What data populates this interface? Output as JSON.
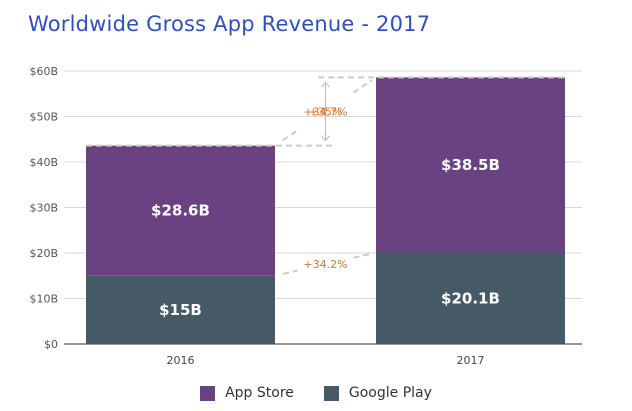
{
  "chart_data": {
    "type": "bar",
    "stacked": true,
    "title": "Worldwide Gross App Revenue - 2017",
    "categories": [
      "2016",
      "2017"
    ],
    "series": [
      {
        "name": "Google Play",
        "values": [
          15,
          20.1
        ],
        "labels": [
          "$15B",
          "$20.1B"
        ],
        "color": "#465a66"
      },
      {
        "name": "App Store",
        "values": [
          28.6,
          38.5
        ],
        "labels": [
          "$28.6B",
          "$38.5B"
        ],
        "color": "#6a4181"
      }
    ],
    "ylim": [
      0,
      60
    ],
    "yticks": [
      0,
      10,
      20,
      30,
      40,
      50,
      60
    ],
    "ytick_labels": [
      "$0",
      "$10B",
      "$20B",
      "$30B",
      "$40B",
      "$50B",
      "$60B"
    ],
    "annotations": [
      {
        "text": "+35%",
        "type": "total-growth"
      },
      {
        "text": "+34.7%",
        "series": "App Store"
      },
      {
        "text": "+34.2%",
        "series": "Google Play"
      }
    ],
    "grid": true,
    "legend": "bottom",
    "xlabel": "",
    "ylabel": ""
  }
}
